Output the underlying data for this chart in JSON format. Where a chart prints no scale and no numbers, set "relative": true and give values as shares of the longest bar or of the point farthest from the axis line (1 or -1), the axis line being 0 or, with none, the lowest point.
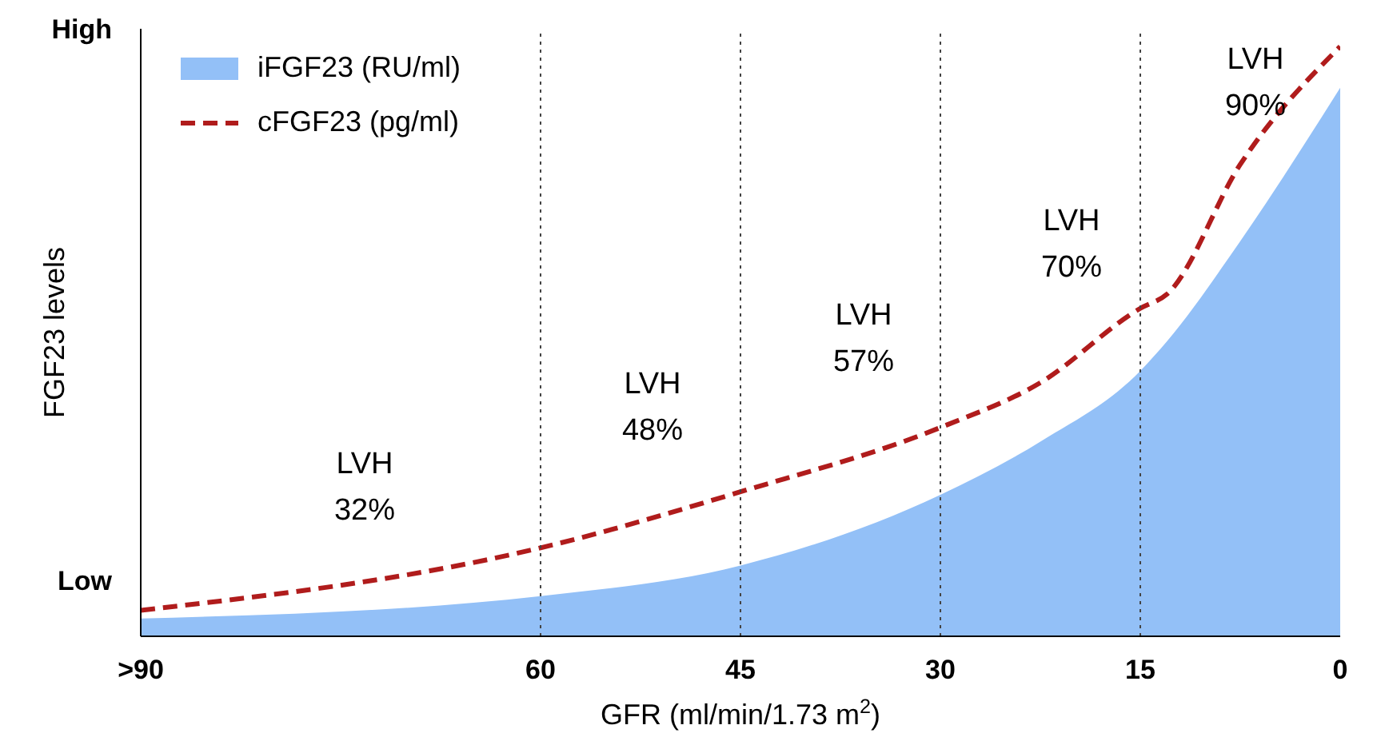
{
  "chart_data": {
    "type": "line",
    "relative": true,
    "xlabel": "GFR (ml/min/1.73 m$^{2}$)",
    "ylabel": "FGF23 levels",
    "x": [
      90,
      60,
      45,
      30,
      22.5,
      15,
      13,
      7.5,
      0
    ],
    "xlim": [
      90,
      0
    ],
    "xticks": [
      {
        "value": 90,
        "label": ">90"
      },
      60,
      45,
      30,
      15,
      0
    ],
    "series": [
      {
        "name": "iFGF23 (RU/ml)",
        "type": "area",
        "color": "#93c0f7",
        "values": [
          0.03,
          0.068,
          0.12,
          0.24,
          0.33,
          0.45,
          0.5,
          0.67,
          0.93
        ]
      },
      {
        "name": "cFGF23 (pg/ml)",
        "color": "#b01c1c",
        "line_style": "dashed",
        "values": [
          0.044,
          0.15,
          0.245,
          0.354,
          0.43,
          0.556,
          0.58,
          0.8,
          1
        ]
      }
    ],
    "ref_lines": [
      {
        "axis": "x",
        "value": 60,
        "line_style": "dotted",
        "color": "#444444"
      },
      {
        "axis": "x",
        "value": 45,
        "line_style": "dotted",
        "color": "#444444"
      },
      {
        "axis": "x",
        "value": 30,
        "line_style": "dotted",
        "color": "#444444"
      },
      {
        "axis": "x",
        "value": 15,
        "line_style": "dotted",
        "color": "#444444"
      }
    ],
    "annotations": [
      "High",
      "Low",
      "LVH\n32%",
      "LVH\n48%",
      "LVH\n57%",
      "LVH\n70%",
      "LVH\n90%"
    ],
    "legend": "top left",
    "marker": "none",
    "grid": false
  }
}
